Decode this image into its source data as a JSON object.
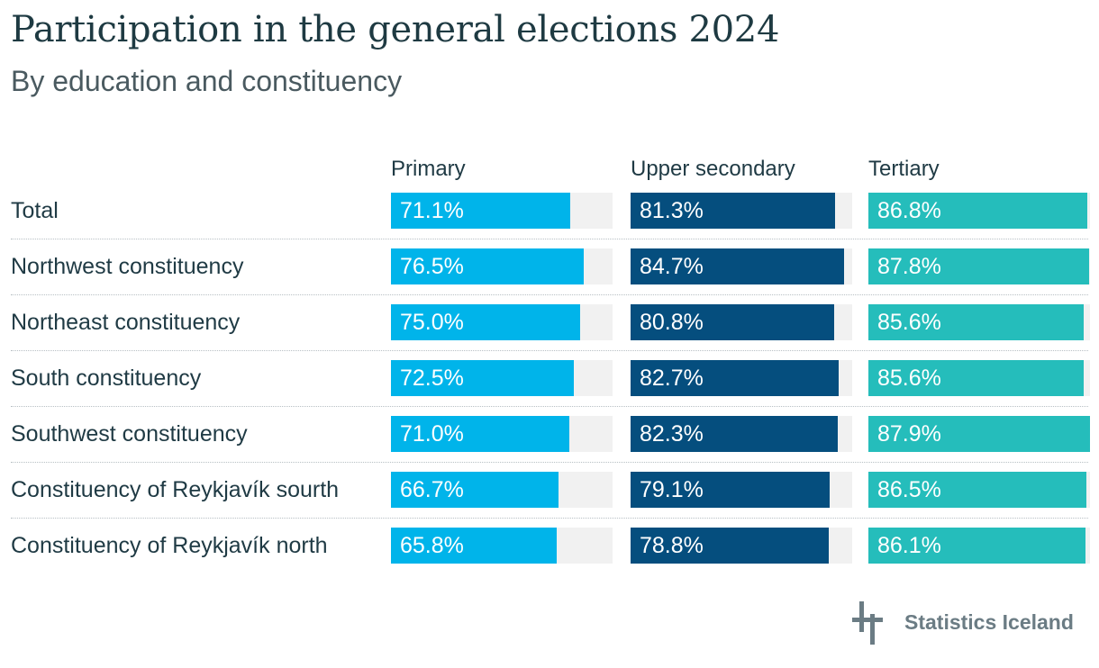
{
  "chart_data": {
    "type": "bar",
    "title": "Participation in the general elections 2024",
    "subtitle": "By education and constituency",
    "categories": [
      "Total",
      "Northwest constituency",
      "Northeast constituency",
      "South constituency",
      "Southwest constituency",
      "Constituency of Reykjavík sourth",
      "Constituency of Reykjavík north"
    ],
    "series": [
      {
        "name": "Primary",
        "color": "#00b4ea",
        "values": [
          71.1,
          76.5,
          75.0,
          72.5,
          71.0,
          66.7,
          65.8
        ],
        "labels": [
          "71.1%",
          "76.5%",
          "75.0%",
          "72.5%",
          "71.0%",
          "66.7%",
          "65.8%"
        ]
      },
      {
        "name": "Upper secondary",
        "color": "#054e7e",
        "values": [
          81.3,
          84.7,
          80.8,
          82.7,
          82.3,
          79.1,
          78.8
        ],
        "labels": [
          "81.3%",
          "84.7%",
          "80.8%",
          "82.7%",
          "82.3%",
          "79.1%",
          "78.8%"
        ]
      },
      {
        "name": "Tertiary",
        "color": "#25bdbb",
        "values": [
          86.8,
          87.8,
          85.6,
          85.6,
          87.9,
          86.5,
          86.1
        ],
        "labels": [
          "86.8%",
          "87.8%",
          "85.6%",
          "85.6%",
          "87.9%",
          "86.5%",
          "86.1%"
        ]
      }
    ],
    "xlim": [
      0,
      88
    ],
    "track_color": "#f1f1f1"
  },
  "logo": {
    "text": "Statistics Iceland",
    "icon": "statistics-iceland-logo-icon",
    "color": "#6b7c84"
  }
}
